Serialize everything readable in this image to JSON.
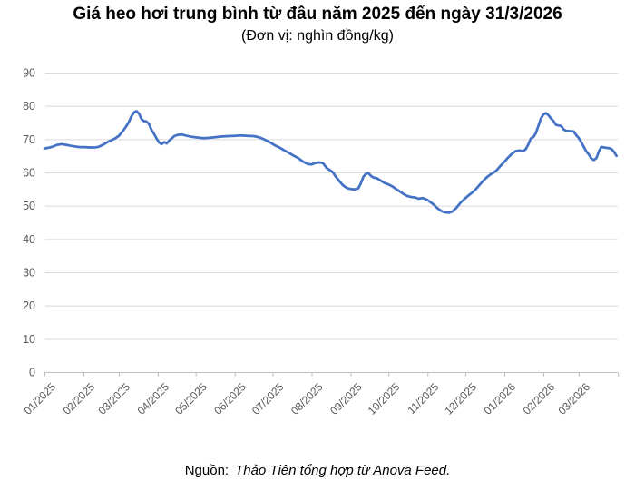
{
  "header": {
    "title": "Giá heo hơi trung bình từ đâu năm 2025 đến ngày 31/3/2026",
    "subtitle": "(Đơn vị: nghìn đồng/kg)"
  },
  "footer": {
    "source_label": "Nguồn:",
    "source_text": "Thảo Tiên tổng hợp từ Anova Feed."
  },
  "chart_data": {
    "type": "line",
    "title": "Giá heo hơi trung bình từ đâu năm 2025 đến ngày 31/3/2026",
    "subtitle": "(Đơn vị: nghìn đồng/kg)",
    "source": "Nguồn: Thảo Tiên tổng hợp từ Anova Feed.",
    "series_name": "Giá heo hơi trung bình (nghìn đồng/kg)",
    "line_color": "#4472C4",
    "grid_color": "#D9D9D9",
    "axis_color": "#BFBFBF",
    "tick_label_color": "#595959",
    "grid": true,
    "legend": "none",
    "ylim": [
      0,
      90
    ],
    "y_ticks": [
      0,
      10,
      20,
      30,
      40,
      50,
      60,
      70,
      80,
      90
    ],
    "x_range": [
      "2025-01-01",
      "2026-04-01"
    ],
    "x_tick_labels": [
      "01/2025",
      "02/2025",
      "03/2025",
      "04/2025",
      "05/2025",
      "06/2025",
      "07/2025",
      "08/2025",
      "09/2025",
      "10/2025",
      "11/2025",
      "12/2025",
      "01/2026",
      "02/2026",
      "03/2026"
    ],
    "points": [
      [
        "2025-01-01",
        67.2
      ],
      [
        "2025-01-04",
        67.4
      ],
      [
        "2025-01-08",
        67.8
      ],
      [
        "2025-01-11",
        68.3
      ],
      [
        "2025-01-15",
        68.5
      ],
      [
        "2025-01-18",
        68.3
      ],
      [
        "2025-01-22",
        68.0
      ],
      [
        "2025-01-25",
        67.8
      ],
      [
        "2025-01-29",
        67.6
      ],
      [
        "2025-02-02",
        67.6
      ],
      [
        "2025-02-06",
        67.5
      ],
      [
        "2025-02-10",
        67.5
      ],
      [
        "2025-02-13",
        67.7
      ],
      [
        "2025-02-16",
        68.2
      ],
      [
        "2025-02-19",
        68.9
      ],
      [
        "2025-02-22",
        69.5
      ],
      [
        "2025-02-26",
        70.2
      ],
      [
        "2025-03-01",
        71.0
      ],
      [
        "2025-03-04",
        72.3
      ],
      [
        "2025-03-07",
        73.9
      ],
      [
        "2025-03-09",
        75.2
      ],
      [
        "2025-03-11",
        76.8
      ],
      [
        "2025-03-13",
        78.0
      ],
      [
        "2025-03-15",
        78.4
      ],
      [
        "2025-03-17",
        77.7
      ],
      [
        "2025-03-19",
        76.0
      ],
      [
        "2025-03-21",
        75.4
      ],
      [
        "2025-03-23",
        75.3
      ],
      [
        "2025-03-25",
        74.5
      ],
      [
        "2025-03-27",
        72.7
      ],
      [
        "2025-03-29",
        71.6
      ],
      [
        "2025-03-31",
        70.2
      ],
      [
        "2025-04-02",
        69.0
      ],
      [
        "2025-04-04",
        68.5
      ],
      [
        "2025-04-06",
        69.1
      ],
      [
        "2025-04-08",
        68.7
      ],
      [
        "2025-04-11",
        69.9
      ],
      [
        "2025-04-14",
        70.9
      ],
      [
        "2025-04-17",
        71.3
      ],
      [
        "2025-04-20",
        71.4
      ],
      [
        "2025-04-24",
        71.0
      ],
      [
        "2025-04-28",
        70.7
      ],
      [
        "2025-05-02",
        70.5
      ],
      [
        "2025-05-07",
        70.3
      ],
      [
        "2025-05-12",
        70.4
      ],
      [
        "2025-05-17",
        70.6
      ],
      [
        "2025-05-22",
        70.8
      ],
      [
        "2025-05-27",
        70.9
      ],
      [
        "2025-06-01",
        71.0
      ],
      [
        "2025-06-06",
        71.1
      ],
      [
        "2025-06-11",
        71.0
      ],
      [
        "2025-06-16",
        70.9
      ],
      [
        "2025-06-20",
        70.6
      ],
      [
        "2025-06-24",
        70.0
      ],
      [
        "2025-06-27",
        69.4
      ],
      [
        "2025-06-30",
        68.8
      ],
      [
        "2025-07-03",
        68.1
      ],
      [
        "2025-07-07",
        67.4
      ],
      [
        "2025-07-10",
        66.7
      ],
      [
        "2025-07-14",
        65.9
      ],
      [
        "2025-07-17",
        65.2
      ],
      [
        "2025-07-21",
        64.4
      ],
      [
        "2025-07-25",
        63.3
      ],
      [
        "2025-07-29",
        62.5
      ],
      [
        "2025-08-01",
        62.4
      ],
      [
        "2025-08-04",
        62.8
      ],
      [
        "2025-08-07",
        63.0
      ],
      [
        "2025-08-10",
        62.8
      ],
      [
        "2025-08-13",
        61.3
      ],
      [
        "2025-08-16",
        60.6
      ],
      [
        "2025-08-18",
        60.0
      ],
      [
        "2025-08-20",
        58.8
      ],
      [
        "2025-08-23",
        57.4
      ],
      [
        "2025-08-26",
        56.1
      ],
      [
        "2025-08-29",
        55.3
      ],
      [
        "2025-09-01",
        55.0
      ],
      [
        "2025-09-04",
        54.9
      ],
      [
        "2025-09-07",
        55.2
      ],
      [
        "2025-09-09",
        56.6
      ],
      [
        "2025-09-11",
        58.6
      ],
      [
        "2025-09-13",
        59.5
      ],
      [
        "2025-09-15",
        59.8
      ],
      [
        "2025-09-17",
        59.0
      ],
      [
        "2025-09-19",
        58.5
      ],
      [
        "2025-09-22",
        58.2
      ],
      [
        "2025-09-25",
        57.5
      ],
      [
        "2025-09-28",
        56.8
      ],
      [
        "2025-10-01",
        56.4
      ],
      [
        "2025-10-04",
        55.8
      ],
      [
        "2025-10-07",
        55.0
      ],
      [
        "2025-10-10",
        54.3
      ],
      [
        "2025-10-13",
        53.5
      ],
      [
        "2025-10-16",
        52.9
      ],
      [
        "2025-10-19",
        52.6
      ],
      [
        "2025-10-22",
        52.5
      ],
      [
        "2025-10-25",
        52.1
      ],
      [
        "2025-10-28",
        52.3
      ],
      [
        "2025-10-31",
        51.9
      ],
      [
        "2025-11-03",
        51.2
      ],
      [
        "2025-11-06",
        50.3
      ],
      [
        "2025-11-09",
        49.2
      ],
      [
        "2025-11-12",
        48.4
      ],
      [
        "2025-11-15",
        48.0
      ],
      [
        "2025-11-18",
        47.9
      ],
      [
        "2025-11-21",
        48.3
      ],
      [
        "2025-11-24",
        49.4
      ],
      [
        "2025-11-27",
        50.8
      ],
      [
        "2025-11-30",
        51.9
      ],
      [
        "2025-12-03",
        52.9
      ],
      [
        "2025-12-06",
        53.8
      ],
      [
        "2025-12-09",
        54.8
      ],
      [
        "2025-12-12",
        56.1
      ],
      [
        "2025-12-15",
        57.4
      ],
      [
        "2025-12-18",
        58.5
      ],
      [
        "2025-12-21",
        59.4
      ],
      [
        "2025-12-23",
        59.8
      ],
      [
        "2025-12-26",
        60.7
      ],
      [
        "2025-12-29",
        62.0
      ],
      [
        "2026-01-01",
        63.2
      ],
      [
        "2026-01-04",
        64.5
      ],
      [
        "2026-01-07",
        65.6
      ],
      [
        "2026-01-10",
        66.4
      ],
      [
        "2026-01-13",
        66.6
      ],
      [
        "2026-01-16",
        66.4
      ],
      [
        "2026-01-18",
        67.0
      ],
      [
        "2026-01-20",
        68.4
      ],
      [
        "2026-01-22",
        70.2
      ],
      [
        "2026-01-24",
        70.6
      ],
      [
        "2026-01-26",
        71.8
      ],
      [
        "2026-01-28",
        74.0
      ],
      [
        "2026-01-30",
        76.2
      ],
      [
        "2026-02-01",
        77.4
      ],
      [
        "2026-02-03",
        77.8
      ],
      [
        "2026-02-05",
        77.2
      ],
      [
        "2026-02-07",
        76.2
      ],
      [
        "2026-02-09",
        75.4
      ],
      [
        "2026-02-11",
        74.3
      ],
      [
        "2026-02-13",
        74.1
      ],
      [
        "2026-02-15",
        74.0
      ],
      [
        "2026-02-17",
        72.9
      ],
      [
        "2026-02-19",
        72.5
      ],
      [
        "2026-02-22",
        72.4
      ],
      [
        "2026-02-25",
        72.3
      ],
      [
        "2026-02-27",
        71.2
      ],
      [
        "2026-03-01",
        70.4
      ],
      [
        "2026-03-04",
        68.4
      ],
      [
        "2026-03-07",
        66.3
      ],
      [
        "2026-03-09",
        65.4
      ],
      [
        "2026-03-11",
        64.2
      ],
      [
        "2026-03-13",
        63.7
      ],
      [
        "2026-03-15",
        64.3
      ],
      [
        "2026-03-17",
        66.3
      ],
      [
        "2026-03-19",
        67.7
      ],
      [
        "2026-03-21",
        67.5
      ],
      [
        "2026-03-23",
        67.4
      ],
      [
        "2026-03-25",
        67.3
      ],
      [
        "2026-03-27",
        67.0
      ],
      [
        "2026-03-29",
        66.2
      ],
      [
        "2026-03-31",
        65.0
      ]
    ]
  }
}
